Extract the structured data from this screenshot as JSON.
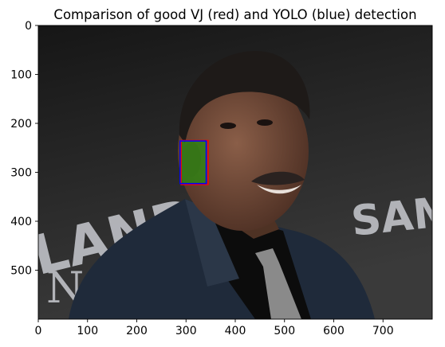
{
  "chart_data": {
    "type": "image",
    "title": "Comparison of good VJ (red) and YOLO (blue) detection",
    "image_width": 800,
    "image_height": 600,
    "xlim": [
      0,
      800
    ],
    "ylim": [
      600,
      0
    ],
    "xticks": [
      0,
      100,
      200,
      300,
      400,
      500,
      600,
      700
    ],
    "yticks": [
      0,
      100,
      200,
      300,
      400,
      500
    ],
    "detections": [
      {
        "label": "VJ",
        "color": "#ff0000",
        "x": 290,
        "y": 235,
        "w": 55,
        "h": 90
      },
      {
        "label": "YOLO",
        "color": "#0000ff",
        "x": 288,
        "y": 236,
        "w": 53,
        "h": 87
      }
    ],
    "highlight_color": "#2a8a10"
  },
  "colors": {
    "background_top": "#161616",
    "background_bottom": "#3a3a3a",
    "skin": "#6a4636",
    "hair": "#1e1a18",
    "suit": "#1f2a3a",
    "shirt": "#0c0c0c",
    "tie": "#8a8a8a",
    "sign_text": "#c8cad0"
  },
  "sign_words": {
    "left": "LAND",
    "left_bottom": "N",
    "right": "SAM"
  }
}
